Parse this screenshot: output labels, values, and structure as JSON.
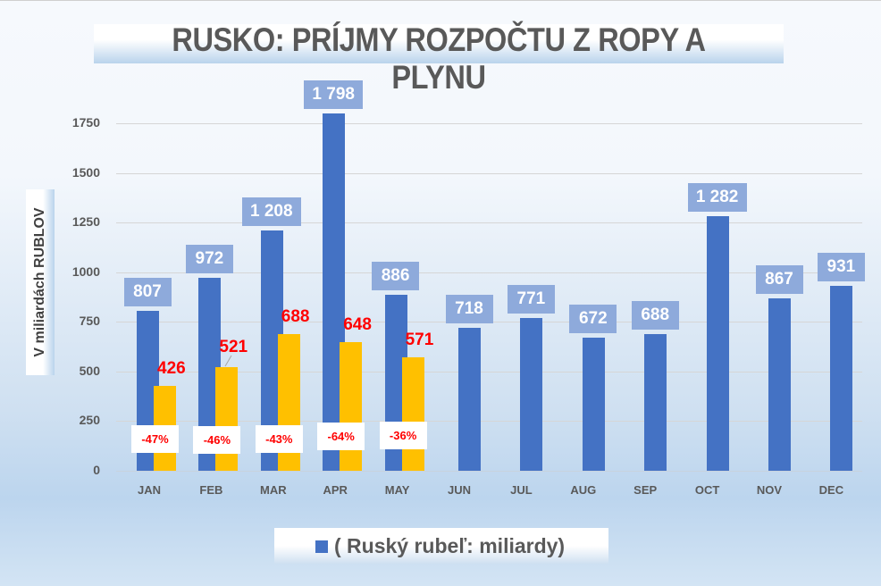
{
  "title": "RUSKO: PRÍJMY ROZPOČTU Z ROPY A PLYNU",
  "y_axis_title": "V miliardách RUBLOV",
  "legend": {
    "swatch_color": "#4472c4",
    "label": "( Ruský rubeľ: miliardy)"
  },
  "colors": {
    "series_2021": "#4472c4",
    "series_2022": "#ffc000",
    "label_bg": "#8eaadb",
    "accent_red": "#ff0000"
  },
  "y_ticks": [
    "0",
    "250",
    "500",
    "750",
    "1000",
    "1250",
    "1500",
    "1750"
  ],
  "months": [
    "JAN",
    "FEB",
    "MAR",
    "APR",
    "MAY",
    "JUN",
    "JUL",
    "AUG",
    "SEP",
    "OCT",
    "NOV",
    "DEC"
  ],
  "blue_labels": [
    "807",
    "972",
    "1 208",
    "1 798",
    "886",
    "718",
    "771",
    "672",
    "688",
    "1 282",
    "867",
    "931"
  ],
  "orange_labels": [
    "426",
    "521",
    "688",
    "648",
    "571"
  ],
  "pct_labels": [
    "-47%",
    "-46%",
    "-43%",
    "-64%",
    "-36%"
  ],
  "chart_data": {
    "type": "bar",
    "title": "RUSKO: PRÍJMY ROZPOČTU Z ROPY A PLYNU",
    "xlabel": "",
    "ylabel": "V miliardách RUBLOV",
    "ylim": [
      0,
      1750
    ],
    "y_ticks": [
      0,
      250,
      500,
      750,
      1000,
      1250,
      1500,
      1750
    ],
    "grid": true,
    "legend_position": "bottom",
    "categories": [
      "JAN",
      "FEB",
      "MAR",
      "APR",
      "MAY",
      "JUN",
      "JUL",
      "AUG",
      "SEP",
      "OCT",
      "NOV",
      "DEC"
    ],
    "series": [
      {
        "name": "( Ruský rubeľ: miliardy) - blue",
        "color": "#4472c4",
        "values": [
          807,
          972,
          1208,
          1798,
          886,
          718,
          771,
          672,
          688,
          1282,
          867,
          931
        ]
      },
      {
        "name": "orange (unlabeled in legend)",
        "color": "#ffc000",
        "values": [
          426,
          521,
          688,
          648,
          571,
          null,
          null,
          null,
          null,
          null,
          null,
          null
        ]
      }
    ],
    "annotations": [
      "-47%",
      "-46%",
      "-43%",
      "-64%",
      "-36%"
    ]
  }
}
